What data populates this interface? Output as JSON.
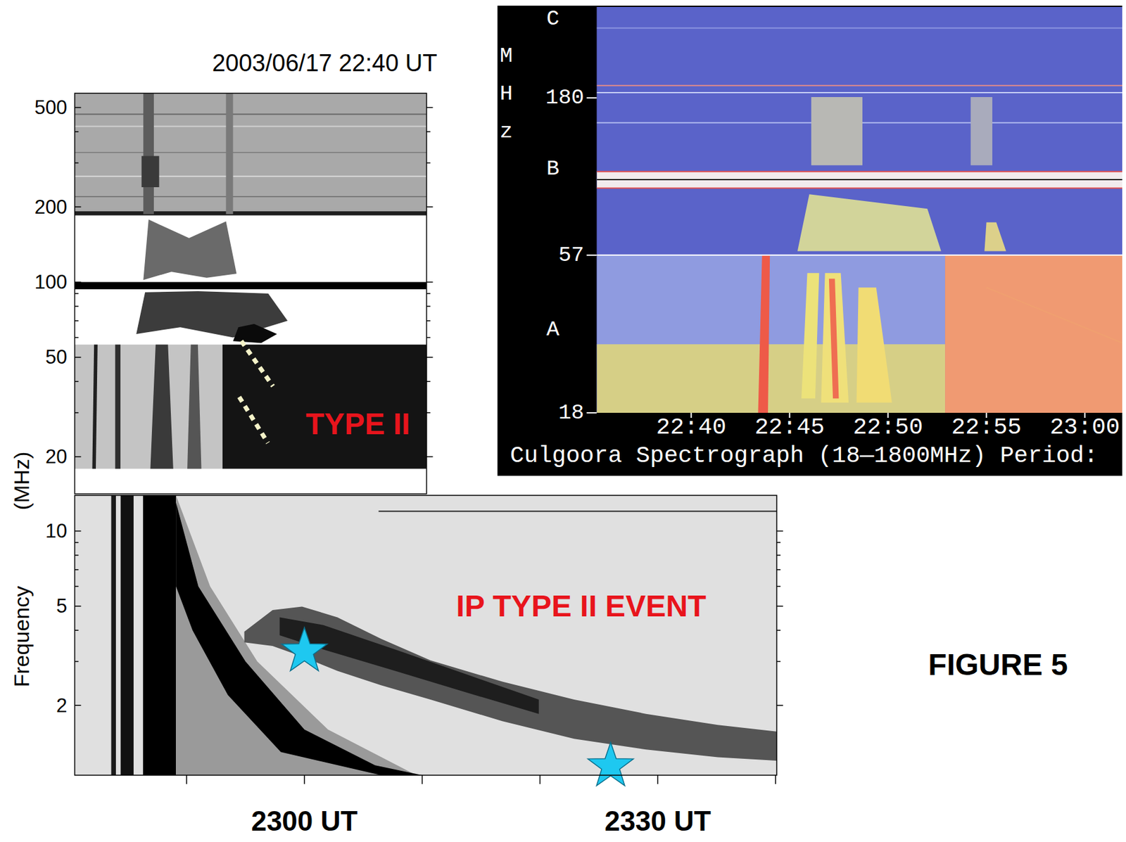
{
  "figure_label": "FIGURE 5",
  "chart_data": [
    {
      "type": "spectrogram",
      "title": "2003/06/17  22:40 UT",
      "xlim": [
        40,
        60
      ],
      "ylim": [
        14.2,
        570
      ],
      "log": "y",
      "yticks": [
        20,
        50,
        100,
        200,
        500
      ],
      "minor_yticks": [
        30,
        40,
        60,
        70,
        80,
        90,
        300,
        400
      ],
      "tick_labels": "y",
      "color": "#ffffff",
      "series": [
        {
          "type": "area",
          "color": "#a9a9a9",
          "x": [
            40,
            60,
            60,
            40
          ],
          "values": [
            187,
            187,
            570,
            570
          ]
        },
        {
          "type": "area",
          "color": "#1e1e1e",
          "x": [
            40,
            60,
            60,
            40
          ],
          "values": [
            185,
            185,
            192,
            192
          ]
        },
        {
          "type": "line",
          "color": "#7a7a7a",
          "x": [
            40,
            60
          ],
          "values": [
            220,
            220
          ]
        },
        {
          "type": "line",
          "color": "#d8d8d8",
          "x": [
            40,
            60
          ],
          "values": [
            265,
            265
          ]
        },
        {
          "type": "line",
          "color": "#848484",
          "x": [
            40,
            60
          ],
          "values": [
            330,
            330
          ]
        },
        {
          "type": "line",
          "color": "#d0d0d0",
          "x": [
            40,
            60
          ],
          "values": [
            420,
            420
          ]
        },
        {
          "type": "line",
          "color": "#6a6a6a",
          "x": [
            40,
            60
          ],
          "values": [
            470,
            470
          ]
        },
        {
          "type": "area",
          "color": "#5c5c5c",
          "x": [
            43.9,
            44.5,
            44.5,
            43.9
          ],
          "values": [
            187,
            187,
            570,
            570
          ]
        },
        {
          "type": "area",
          "color": "#7a7a7a",
          "x": [
            48.6,
            49.0,
            49.0,
            48.6
          ],
          "values": [
            187,
            187,
            570,
            570
          ]
        },
        {
          "type": "area",
          "color": "#3a3a3a",
          "x": [
            43.8,
            44.8,
            44.8,
            43.8
          ],
          "values": [
            240,
            240,
            320,
            320
          ]
        },
        {
          "type": "area",
          "color": "#6a6a6a",
          "x": [
            43.9,
            45.5,
            47.5,
            49.2,
            48.6,
            46.5,
            44.2
          ],
          "values": [
            102,
            110,
            104,
            108,
            175,
            150,
            178
          ]
        },
        {
          "type": "area",
          "color": "#000000",
          "x": [
            40,
            60,
            60,
            40
          ],
          "values": [
            93.6,
            93.6,
            100,
            100
          ]
        },
        {
          "type": "area",
          "color": "#3c3c3c",
          "x": [
            43.5,
            46,
            49,
            52.1,
            51,
            47,
            44
          ],
          "values": [
            62,
            66,
            60,
            70,
            90,
            92,
            91
          ]
        },
        {
          "type": "area",
          "color": "#0a0a0a",
          "x": [
            49.0,
            50.6,
            51.5,
            50.2,
            49.3
          ],
          "values": [
            58,
            57,
            62,
            68,
            66
          ]
        },
        {
          "type": "area",
          "color": "#c4c4c4",
          "x": [
            40,
            48.4,
            48.4,
            40
          ],
          "values": [
            17.9,
            17.9,
            56.2,
            56.2
          ]
        },
        {
          "type": "area",
          "color": "#141414",
          "x": [
            48.4,
            60,
            60,
            48.4
          ],
          "values": [
            17.9,
            17.9,
            56.2,
            56.2
          ]
        },
        {
          "type": "area",
          "color": "#202020",
          "x": [
            41.0,
            41.2,
            41.3,
            41.1
          ],
          "values": [
            17.9,
            17.9,
            56.2,
            56.2
          ]
        },
        {
          "type": "area",
          "color": "#303030",
          "x": [
            42.3,
            42.6,
            42.6,
            42.3
          ],
          "values": [
            17.9,
            17.9,
            56.2,
            56.2
          ]
        },
        {
          "type": "area",
          "color": "#3a3a3a",
          "x": [
            44.3,
            45.6,
            45.3,
            44.6
          ],
          "values": [
            17.9,
            17.9,
            56.2,
            56.2
          ]
        },
        {
          "type": "area",
          "color": "#555555",
          "x": [
            46.4,
            47.2,
            47.0,
            46.6
          ],
          "values": [
            17.9,
            17.9,
            56.2,
            56.2
          ]
        },
        {
          "type": "line",
          "line_style": "dotted",
          "color": "#f4f2c8",
          "x": [
            49.47,
            51.27
          ],
          "values": [
            58.1,
            38.3
          ]
        },
        {
          "type": "line",
          "line_style": "dotted",
          "color": "#f4f2c8",
          "x": [
            49.35,
            50.98
          ],
          "values": [
            34.7,
            22.7
          ]
        }
      ],
      "annotations": [
        {
          "text": "TYPE II",
          "x": 56.1,
          "y": 27.1,
          "color": "#e8141c"
        }
      ]
    },
    {
      "type": "spectrogram",
      "xlim": [
        35.2,
        61.9
      ],
      "ylim": [
        18,
        350
      ],
      "log": "y",
      "yticks": [
        18,
        57,
        180
      ],
      "ylabel": "MHz",
      "xlabel": "Culgoora Spectrograph (18—1800MHz) Period:",
      "xticks": [
        {
          "value": 40,
          "label": "22:40"
        },
        {
          "value": 45,
          "label": "22:45"
        },
        {
          "value": 50,
          "label": "22:50"
        },
        {
          "value": 55,
          "label": "22:55"
        },
        {
          "value": 60,
          "label": "23:00"
        }
      ],
      "color": "#5a63c9",
      "series": [
        {
          "type": "line",
          "color": "#8a94e0",
          "x": [
            35.2,
            61.9
          ],
          "values": [
            300,
            300
          ]
        },
        {
          "type": "line",
          "color": "#e08a8a",
          "x": [
            35.2,
            61.9
          ],
          "values": [
            197,
            197
          ]
        },
        {
          "type": "line",
          "color": "#c8d0f4",
          "x": [
            35.2,
            61.9
          ],
          "values": [
            187,
            187
          ]
        },
        {
          "type": "line",
          "color": "#b0b8ee",
          "x": [
            35.2,
            61.9
          ],
          "values": [
            150,
            150
          ]
        },
        {
          "type": "area",
          "color": "#b8b8b4",
          "x": [
            46.1,
            48.7,
            48.7,
            46.1
          ],
          "values": [
            110,
            110,
            181,
            181
          ]
        },
        {
          "type": "area",
          "color": "#a9abbc",
          "x": [
            54.2,
            55.3,
            55.3,
            54.2
          ],
          "values": [
            110,
            110,
            181,
            181
          ]
        },
        {
          "type": "area",
          "color": "#f2ecee",
          "x": [
            35.2,
            61.9,
            61.9,
            35.2
          ],
          "values": [
            93,
            93,
            105,
            105
          ]
        },
        {
          "type": "line",
          "color": "#e05050",
          "x": [
            35.2,
            61.9
          ],
          "values": [
            93,
            93
          ]
        },
        {
          "type": "line",
          "color": "#e05050",
          "x": [
            35.2,
            61.9
          ],
          "values": [
            105,
            105
          ]
        },
        {
          "type": "line",
          "color": "#1a1a1a",
          "x": [
            35.2,
            61.9
          ],
          "values": [
            99,
            99
          ]
        },
        {
          "type": "area",
          "color": "#d2d49a",
          "x": [
            45.4,
            52.7,
            52.0,
            46.0
          ],
          "values": [
            58.7,
            58.7,
            80,
            89
          ]
        },
        {
          "type": "area",
          "color": "#dcd08a",
          "x": [
            54.9,
            56,
            55.5,
            55
          ],
          "values": [
            58.7,
            58.7,
            72.5,
            72.5
          ]
        },
        {
          "type": "area",
          "color": "#8f9be0",
          "x": [
            35.2,
            52.9,
            52.9,
            35.2
          ],
          "values": [
            18,
            18,
            57,
            57
          ]
        },
        {
          "type": "area",
          "color": "#d6cf86",
          "x": [
            35.2,
            52.9,
            52.9,
            35.2
          ],
          "values": [
            18,
            18,
            29.7,
            29.7
          ]
        },
        {
          "type": "area",
          "color": "#f09a72",
          "x": [
            52.9,
            61.9,
            61.9,
            52.9
          ],
          "values": [
            18,
            18,
            57,
            57
          ]
        },
        {
          "type": "area",
          "color": "#ee5a48",
          "x": [
            43.4,
            43.9,
            44.0,
            43.6
          ],
          "values": [
            18,
            18,
            57,
            57
          ]
        },
        {
          "type": "area",
          "color": "#ece27a",
          "x": [
            45.6,
            46.3,
            46.5,
            45.9
          ],
          "values": [
            20,
            20,
            50,
            50
          ]
        },
        {
          "type": "area",
          "color": "#efe07a",
          "x": [
            46.6,
            48.0,
            47.6,
            46.8
          ],
          "values": [
            19.4,
            19.4,
            50,
            50
          ]
        },
        {
          "type": "area",
          "color": "#f1dc74",
          "x": [
            48.4,
            50.2,
            49.4,
            48.5
          ],
          "values": [
            19.4,
            19.4,
            45,
            45
          ]
        },
        {
          "type": "area",
          "color": "#ef6e52",
          "x": [
            47.2,
            47.5,
            47.3,
            47.0
          ],
          "values": [
            20,
            20,
            48,
            48
          ]
        },
        {
          "type": "line",
          "color": "#f0a070",
          "x": [
            55,
            61.9
          ],
          "values": [
            45,
            30
          ]
        },
        {
          "type": "line",
          "color": "#ffffff",
          "x": [
            35.2,
            61.9
          ],
          "values": [
            57,
            57
          ]
        }
      ],
      "annotations": [
        {
          "text": "C",
          "y": 320,
          "color": "#ffffff"
        },
        {
          "text": "B",
          "y": 107,
          "color": "#ffffff"
        },
        {
          "text": "A",
          "y": 33,
          "color": "#ffffff"
        }
      ]
    },
    {
      "type": "spectrogram",
      "xlim": [
        40.5,
        100.1
      ],
      "ylim": [
        1.05,
        13.9
      ],
      "log": "y",
      "yticks": [
        2,
        5,
        10
      ],
      "minor_yticks": [
        3,
        4,
        6,
        7,
        8,
        9
      ],
      "xticks": [
        {
          "value": 60,
          "label": "2300 UT"
        },
        {
          "value": 90,
          "label": "2330 UT"
        }
      ],
      "minor_xticks": [
        50,
        70,
        80,
        100
      ],
      "ylabel": "Frequency",
      "yunit": "(MHz)",
      "color": "#e0e0e0",
      "series": [
        {
          "type": "line",
          "color": "#303030",
          "x": [
            66.3,
            100.1
          ],
          "values": [
            12,
            12
          ]
        },
        {
          "type": "area",
          "color": "#1a1a1a",
          "x": [
            43.6,
            44.0,
            44.0,
            43.6
          ],
          "values": [
            1.05,
            1.05,
            13.9,
            13.9
          ]
        },
        {
          "type": "area",
          "color": "#111111",
          "x": [
            44.4,
            45.5,
            45.5,
            44.4
          ],
          "values": [
            1.05,
            1.05,
            13.9,
            13.9
          ]
        },
        {
          "type": "area",
          "color": "#000000",
          "x": [
            46.3,
            49.1,
            49.1,
            46.3
          ],
          "values": [
            1.05,
            1.05,
            13.9,
            13.9
          ]
        },
        {
          "type": "area",
          "color": "#9a9a9a",
          "x": [
            49.1,
            52,
            56,
            62,
            69.5,
            49.1
          ],
          "values": [
            13.9,
            6,
            3,
            1.6,
            1.05,
            1.05
          ]
        },
        {
          "type": "area",
          "color": "#000000",
          "x": [
            49.1,
            51,
            55,
            60,
            66,
            70,
            66.5,
            58,
            53.5,
            50.5,
            49.1
          ],
          "values": [
            13,
            6,
            3,
            1.6,
            1.15,
            1.05,
            1.05,
            1.3,
            2.2,
            4,
            6
          ]
        },
        {
          "type": "area",
          "color": "#555555",
          "x": [
            54.9,
            57.3,
            59.8,
            62.8,
            66.5,
            70.7,
            76.8,
            82.9,
            89.0,
            95.1,
            100.1,
            100.1,
            95.1,
            89.0,
            82.9,
            76.8,
            70.7,
            66.5,
            62.8,
            59.8,
            57.3,
            54.9
          ],
          "values": [
            3.95,
            4.82,
            4.98,
            4.51,
            3.7,
            3.03,
            2.49,
            2.11,
            1.85,
            1.67,
            1.57,
            1.2,
            1.24,
            1.33,
            1.47,
            1.73,
            2.11,
            2.41,
            2.75,
            3.14,
            3.46,
            3.58
          ]
        },
        {
          "type": "area",
          "color": "#1e1e1e",
          "x": [
            57.9,
            61.6,
            67.7,
            73.8,
            79.9,
            79.9,
            73.8,
            67.7,
            61.6,
            57.9
          ],
          "values": [
            4.51,
            4.2,
            3.35,
            2.66,
            2.11,
            1.85,
            2.25,
            2.75,
            3.35,
            3.82
          ]
        },
        {
          "type": "scatter",
          "marker": "star",
          "color": "#1ec8f0",
          "x": [
            60,
            86
          ],
          "values": [
            3.29,
            1.14
          ]
        }
      ],
      "annotations": [
        {
          "text": "IP TYPE II EVENT",
          "x": 83.5,
          "y": 5,
          "color": "#e8141c"
        }
      ]
    }
  ]
}
